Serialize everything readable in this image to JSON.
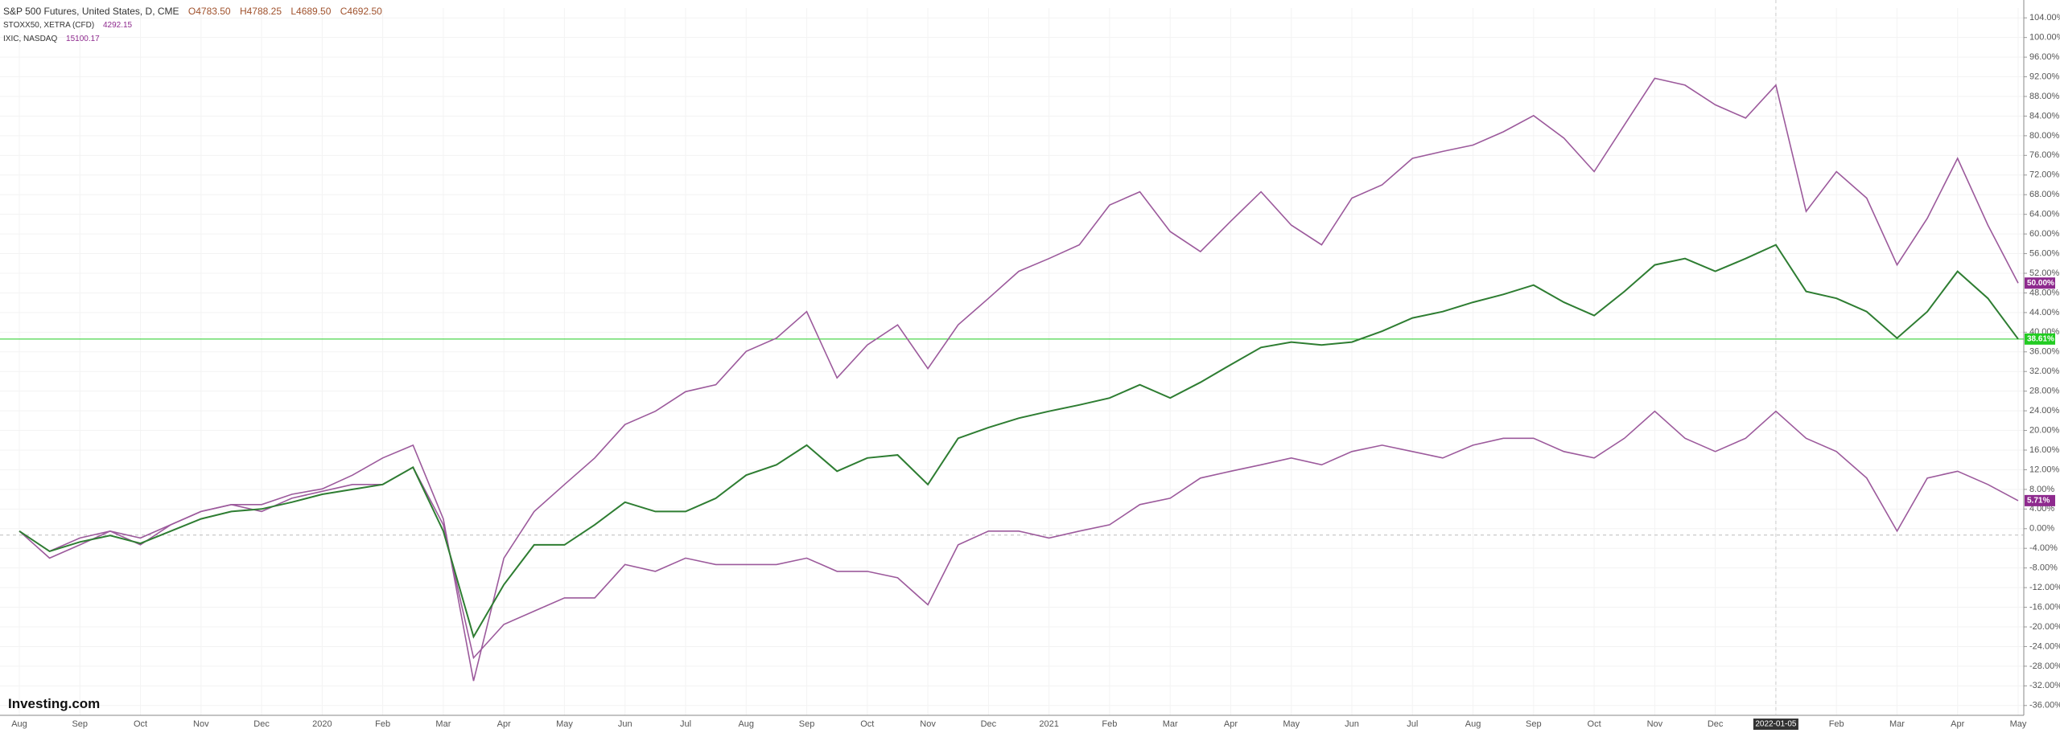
{
  "chart_data": {
    "type": "line",
    "logo": "Investing.com",
    "categories": [
      "Aug",
      null,
      "Sep",
      null,
      "Oct",
      null,
      "Nov",
      null,
      "Dec",
      null,
      "2020",
      null,
      "Feb",
      null,
      "Mar",
      null,
      "Apr",
      null,
      "May",
      null,
      "Jun",
      null,
      "Jul",
      null,
      "Aug",
      null,
      "Sep",
      null,
      "Oct",
      null,
      "Nov",
      null,
      "Dec",
      null,
      "2021",
      null,
      "Feb",
      null,
      "Mar",
      null,
      "Apr",
      null,
      "May",
      null,
      "Jun",
      null,
      "Jul",
      null,
      "Aug",
      null,
      "Sep",
      null,
      "Oct",
      null,
      "Nov",
      null,
      "Dec",
      null,
      "2022-01-05",
      null,
      "Feb",
      null,
      "Mar",
      null,
      "Apr",
      null,
      "May"
    ],
    "series": [
      {
        "name": "S&P 500 Futures, United States, D, CME",
        "quote": [
          "O4783.50",
          "H4788.25",
          "L4689.50",
          "C4692.50"
        ],
        "color": "#2e7d32",
        "label_color": "#22cc22",
        "values": [
          -0.5,
          -4.6,
          -2.7,
          -1.4,
          -3,
          -0.5,
          2,
          3.5,
          4,
          5.4,
          7,
          8,
          9,
          12.5,
          -0.5,
          -22,
          -11.4,
          -3.3,
          -3.3,
          0.8,
          5.4,
          3.5,
          3.5,
          6.2,
          10.9,
          13,
          17,
          11.7,
          14.4,
          15,
          9,
          18.4,
          20.6,
          22.5,
          23.9,
          25.2,
          26.6,
          29.3,
          26.6,
          29.8,
          33.4,
          36.9,
          38,
          37.4,
          38,
          40.2,
          42.9,
          44.2,
          46.1,
          47.7,
          49.6,
          46.1,
          43.4,
          48.3,
          53.7,
          55,
          52.4,
          55,
          57.8,
          48.3,
          46.9,
          44.2,
          38.8,
          44.2,
          52.4,
          46.9,
          38.61
        ],
        "value_labels": [
          null,
          null,
          null,
          null,
          null,
          null,
          null,
          null,
          null,
          null,
          null,
          null,
          null,
          null,
          null,
          null,
          null,
          null,
          null,
          null,
          null,
          null,
          null,
          null,
          null,
          null,
          null,
          null,
          null,
          null,
          null,
          null,
          null,
          null,
          null,
          null,
          null,
          null,
          null,
          null,
          null,
          null,
          null,
          null,
          null,
          null,
          null,
          null,
          null,
          null,
          null,
          null,
          null,
          null,
          null,
          null,
          null,
          null,
          null,
          null,
          null,
          null,
          null,
          null,
          null,
          null,
          "38.61%"
        ]
      },
      {
        "name": "STOXX50, XETRA (CFD)",
        "price": "4292.15",
        "color": "#9c5a9c",
        "label_color": "#8e2a8e",
        "values": [
          -0.5,
          -6,
          -3.3,
          -0.5,
          -3.3,
          0.8,
          3.5,
          4.9,
          3.5,
          6.2,
          7.6,
          9,
          9,
          12.5,
          0.8,
          -26.3,
          -19.5,
          -16.8,
          -14.1,
          -14.1,
          -7.3,
          -8.7,
          -6,
          -7.3,
          -7.3,
          -7.3,
          -6,
          -8.7,
          -8.7,
          -10,
          -15.5,
          -3.3,
          -0.5,
          -0.5,
          -1.9,
          -0.5,
          0.8,
          4.9,
          6.2,
          10.3,
          11.7,
          13,
          14.4,
          13,
          15.7,
          17,
          15.7,
          14.4,
          17,
          18.4,
          18.4,
          15.7,
          14.4,
          18.4,
          23.9,
          18.4,
          15.7,
          18.4,
          23.9,
          18.4,
          15.7,
          10.3,
          -0.5,
          10.3,
          11.7,
          9,
          5.71
        ],
        "value_labels": [
          null,
          null,
          null,
          null,
          null,
          null,
          null,
          null,
          null,
          null,
          null,
          null,
          null,
          null,
          null,
          null,
          null,
          null,
          null,
          null,
          null,
          null,
          null,
          null,
          null,
          null,
          null,
          null,
          null,
          null,
          null,
          null,
          null,
          null,
          null,
          null,
          null,
          null,
          null,
          null,
          null,
          null,
          null,
          null,
          null,
          null,
          null,
          null,
          null,
          null,
          null,
          null,
          null,
          null,
          null,
          null,
          null,
          null,
          null,
          null,
          null,
          null,
          null,
          null,
          null,
          null,
          "5.71%"
        ]
      },
      {
        "name": "IXIC, NASDAQ",
        "price": "15100.17",
        "color": "#9c5a9c",
        "label_color": "#8e2a8e",
        "values": [
          -0.5,
          -4.6,
          -1.9,
          -0.5,
          -1.9,
          0.8,
          3.5,
          4.9,
          4.9,
          7,
          8.1,
          10.9,
          14.4,
          17,
          2,
          -31,
          -6,
          3.5,
          9,
          14.4,
          21.2,
          23.9,
          27.9,
          29.3,
          36.1,
          38.8,
          44.2,
          30.7,
          37.4,
          41.5,
          32.6,
          41.5,
          46.9,
          52.4,
          55,
          57.8,
          65.9,
          68.6,
          60.5,
          56.4,
          62.6,
          68.6,
          61.8,
          57.8,
          67.3,
          70,
          75.4,
          76.8,
          78.1,
          80.8,
          84.1,
          79.5,
          72.7,
          82.2,
          91.7,
          90.3,
          86.3,
          83.6,
          90.3,
          64.6,
          72.7,
          67.3,
          53.7,
          63.2,
          75.4,
          61.8,
          50
        ],
        "value_labels": [
          null,
          null,
          null,
          null,
          null,
          null,
          null,
          null,
          null,
          null,
          null,
          null,
          null,
          null,
          null,
          null,
          null,
          null,
          null,
          null,
          null,
          null,
          null,
          null,
          null,
          null,
          null,
          null,
          null,
          null,
          null,
          null,
          null,
          null,
          null,
          null,
          null,
          null,
          null,
          null,
          null,
          null,
          null,
          null,
          null,
          null,
          null,
          null,
          null,
          null,
          null,
          null,
          null,
          null,
          null,
          null,
          null,
          null,
          null,
          null,
          null,
          null,
          null,
          null,
          null,
          null,
          "50.00%"
        ]
      }
    ],
    "ylim": [
      -38,
      106
    ],
    "yticks": [
      {
        "value": -36,
        "label": "-36.00%"
      },
      {
        "value": -32,
        "label": "-32.00%"
      },
      {
        "value": -28,
        "label": "-28.00%"
      },
      {
        "value": -24,
        "label": "-24.00%"
      },
      {
        "value": -20,
        "label": "-20.00%"
      },
      {
        "value": -16,
        "label": "-16.00%"
      },
      {
        "value": -12,
        "label": "-12.00%"
      },
      {
        "value": -8,
        "label": "-8.00%"
      },
      {
        "value": -4,
        "label": "-4.00%"
      },
      {
        "value": 0,
        "label": "0.00%"
      },
      {
        "value": 4,
        "label": "4.00%"
      },
      {
        "value": 8,
        "label": "8.00%"
      },
      {
        "value": 12,
        "label": "12.00%"
      },
      {
        "value": 16,
        "label": "16.00%"
      },
      {
        "value": 20,
        "label": "20.00%"
      },
      {
        "value": 24,
        "label": "24.00%"
      },
      {
        "value": 28,
        "label": "28.00%"
      },
      {
        "value": 32,
        "label": "32.00%"
      },
      {
        "value": 36,
        "label": "36.00%"
      },
      {
        "value": 40,
        "label": "40.00%"
      },
      {
        "value": 44,
        "label": "44.00%"
      },
      {
        "value": 48,
        "label": "48.00%"
      },
      {
        "value": 52,
        "label": "52.00%"
      },
      {
        "value": 56,
        "label": "56.00%"
      },
      {
        "value": 60,
        "label": "60.00%"
      },
      {
        "value": 64,
        "label": "64.00%"
      },
      {
        "value": 68,
        "label": "68.00%"
      },
      {
        "value": 72,
        "label": "72.00%"
      },
      {
        "value": 76,
        "label": "76.00%"
      },
      {
        "value": 80,
        "label": "80.00%"
      },
      {
        "value": 84,
        "label": "84.00%"
      },
      {
        "value": 88,
        "label": "88.00%"
      },
      {
        "value": 92,
        "label": "92.00%"
      },
      {
        "value": 96,
        "label": "96.00%"
      },
      {
        "value": 100,
        "label": "100.00%"
      },
      {
        "value": 104,
        "label": "104.00%"
      }
    ],
    "grid": true
  }
}
